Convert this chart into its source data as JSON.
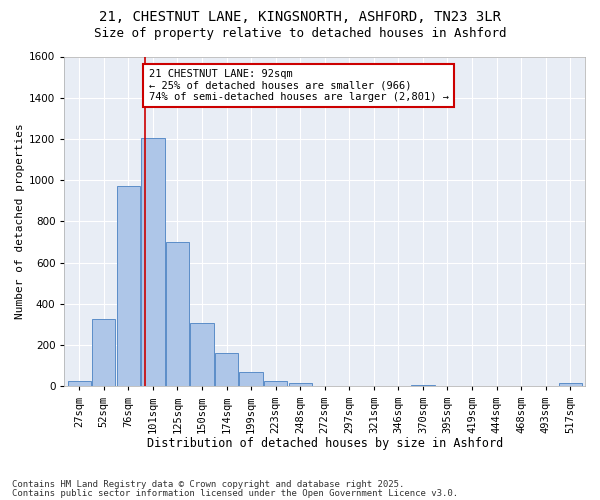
{
  "title1": "21, CHESTNUT LANE, KINGSNORTH, ASHFORD, TN23 3LR",
  "title2": "Size of property relative to detached houses in Ashford",
  "xlabel": "Distribution of detached houses by size in Ashford",
  "ylabel": "Number of detached properties",
  "bar_labels": [
    "27sqm",
    "52sqm",
    "76sqm",
    "101sqm",
    "125sqm",
    "150sqm",
    "174sqm",
    "199sqm",
    "223sqm",
    "248sqm",
    "272sqm",
    "297sqm",
    "321sqm",
    "346sqm",
    "370sqm",
    "395sqm",
    "419sqm",
    "444sqm",
    "468sqm",
    "493sqm",
    "517sqm"
  ],
  "bar_values": [
    25,
    325,
    970,
    1205,
    700,
    305,
    160,
    70,
    25,
    15,
    0,
    0,
    0,
    0,
    5,
    0,
    0,
    0,
    0,
    0,
    15
  ],
  "bar_color": "#aec6e8",
  "bar_edge_color": "#5b8dc8",
  "bg_color": "#e8edf5",
  "grid_color": "#ffffff",
  "annotation_text": "21 CHESTNUT LANE: 92sqm\n← 25% of detached houses are smaller (966)\n74% of semi-detached houses are larger (2,801) →",
  "annotation_box_color": "#ffffff",
  "annotation_box_edge": "#cc0000",
  "vline_color": "#cc0000",
  "vline_bar_index": 2.68,
  "ylim": [
    0,
    1600
  ],
  "yticks": [
    0,
    200,
    400,
    600,
    800,
    1000,
    1200,
    1400,
    1600
  ],
  "footnote1": "Contains HM Land Registry data © Crown copyright and database right 2025.",
  "footnote2": "Contains public sector information licensed under the Open Government Licence v3.0.",
  "title1_fontsize": 10,
  "title2_fontsize": 9,
  "xlabel_fontsize": 8.5,
  "ylabel_fontsize": 8,
  "tick_fontsize": 7.5,
  "annotation_fontsize": 7.5,
  "footnote_fontsize": 6.5,
  "fig_bg_color": "#ffffff"
}
